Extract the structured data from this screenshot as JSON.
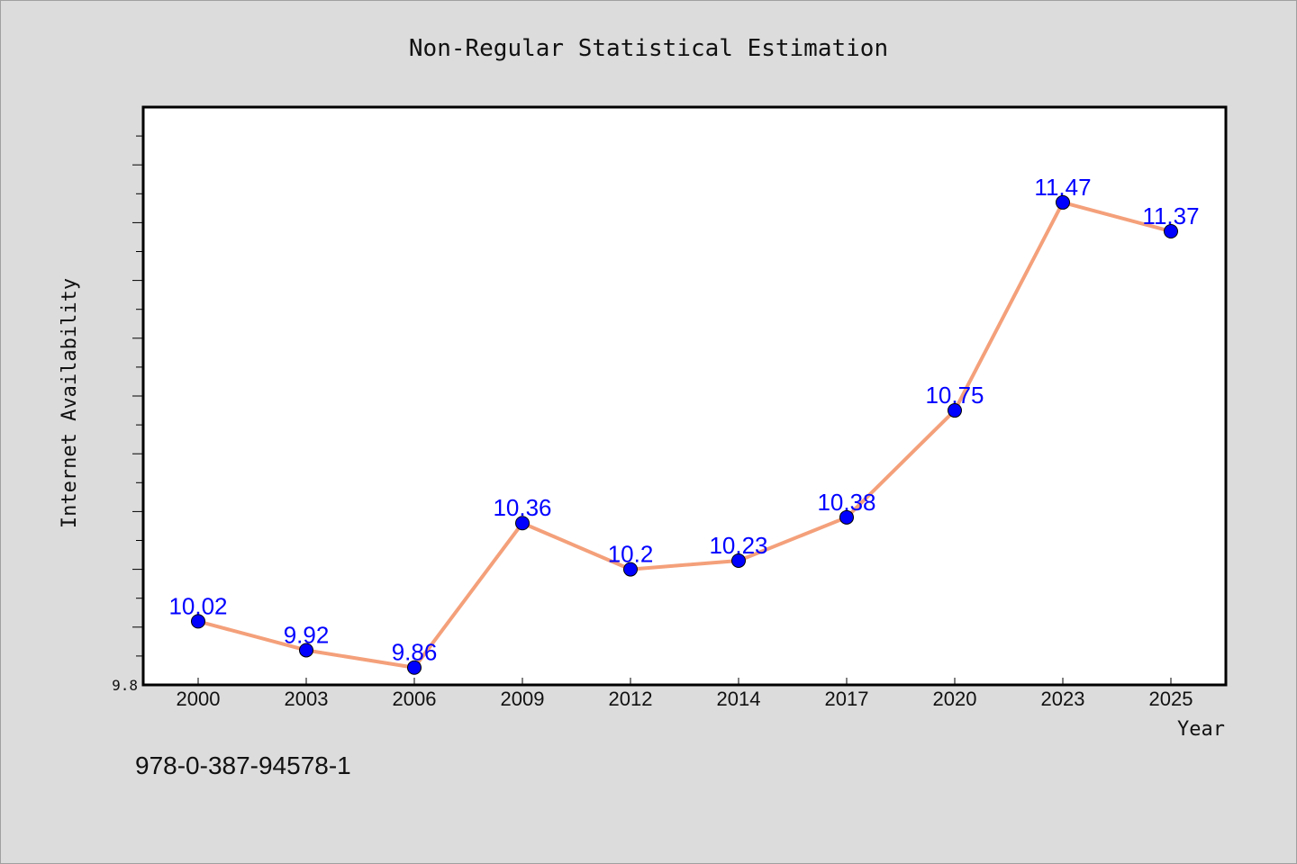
{
  "chart_data": {
    "type": "line",
    "title": "Non-Regular Statistical Estimation",
    "xlabel": "Year",
    "ylabel": "Internet Availability",
    "categories": [
      "2000",
      "2003",
      "2006",
      "2009",
      "2012",
      "2014",
      "2017",
      "2020",
      "2023",
      "2025"
    ],
    "series": [
      {
        "values": [
          10.02,
          9.92,
          9.86,
          10.36,
          10.2,
          10.23,
          10.38,
          10.75,
          11.47,
          11.37
        ],
        "labels": [
          "10.02",
          "9.92",
          "9.86",
          "10.36",
          "10.2",
          "10.23",
          "10.38",
          "10.75",
          "11.47",
          "11.37"
        ],
        "line_color": "#f4a07a",
        "marker_color": "#0000ff"
      }
    ],
    "ylim": [
      9.8,
      11.8
    ],
    "yticks_labeled": [
      "9.8"
    ],
    "grid": false,
    "legend": "none"
  },
  "footer_text": "978-0-387-94578-1"
}
